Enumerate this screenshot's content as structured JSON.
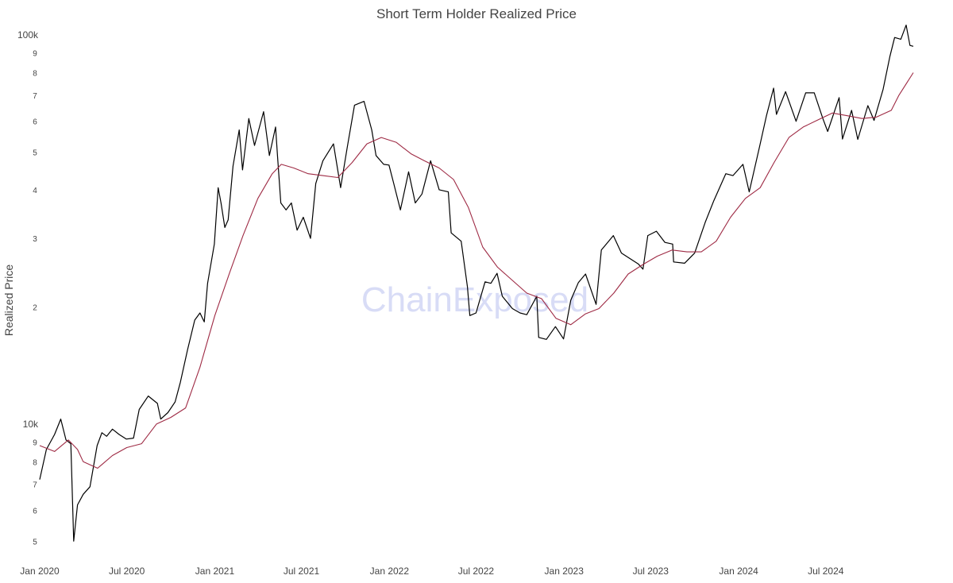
{
  "chart_data": {
    "type": "line",
    "title": "Short Term Holder Realized Price",
    "ylabel": "Realized Price",
    "xlabel": "",
    "y_scale": "log",
    "ylim": [
      4800,
      100000
    ],
    "grid": false,
    "legend": "none",
    "watermark": "ChainExposed",
    "x_ticks": [
      "Jan 2020",
      "Jul 2020",
      "Jan 2021",
      "Jul 2021",
      "Jan 2022",
      "Jul 2022",
      "Jan 2023",
      "Jul 2023",
      "Jan 2024",
      "Jul 2024"
    ],
    "y_major_ticks": [
      {
        "value": 10000,
        "label": "10k"
      },
      {
        "value": 100000,
        "label": "100k"
      }
    ],
    "y_minor_ticks": [
      {
        "value": 5000,
        "label": "5"
      },
      {
        "value": 6000,
        "label": "6"
      },
      {
        "value": 7000,
        "label": "7"
      },
      {
        "value": 8000,
        "label": "8"
      },
      {
        "value": 9000,
        "label": "9"
      },
      {
        "value": 20000,
        "label": "2"
      },
      {
        "value": 30000,
        "label": "3"
      },
      {
        "value": 40000,
        "label": "4"
      },
      {
        "value": 50000,
        "label": "5"
      },
      {
        "value": 60000,
        "label": "6"
      },
      {
        "value": 70000,
        "label": "7"
      },
      {
        "value": 80000,
        "label": "8"
      },
      {
        "value": 90000,
        "label": "9"
      }
    ],
    "series": [
      {
        "color": "#000000",
        "points": [
          [
            "2020-01-01",
            7200
          ],
          [
            "2020-01-15",
            8600
          ],
          [
            "2020-02-01",
            9400
          ],
          [
            "2020-02-14",
            10300
          ],
          [
            "2020-02-25",
            9100
          ],
          [
            "2020-03-06",
            8900
          ],
          [
            "2020-03-12",
            5000
          ],
          [
            "2020-03-20",
            6200
          ],
          [
            "2020-04-01",
            6600
          ],
          [
            "2020-04-15",
            6900
          ],
          [
            "2020-04-30",
            8800
          ],
          [
            "2020-05-10",
            9500
          ],
          [
            "2020-05-20",
            9300
          ],
          [
            "2020-06-01",
            9700
          ],
          [
            "2020-06-15",
            9400
          ],
          [
            "2020-06-30",
            9150
          ],
          [
            "2020-07-15",
            9200
          ],
          [
            "2020-07-27",
            10900
          ],
          [
            "2020-08-15",
            11800
          ],
          [
            "2020-09-03",
            11300
          ],
          [
            "2020-09-10",
            10300
          ],
          [
            "2020-09-25",
            10700
          ],
          [
            "2020-10-10",
            11400
          ],
          [
            "2020-10-21",
            12800
          ],
          [
            "2020-11-05",
            15500
          ],
          [
            "2020-11-20",
            18500
          ],
          [
            "2020-12-01",
            19300
          ],
          [
            "2020-12-10",
            18300
          ],
          [
            "2020-12-17",
            23000
          ],
          [
            "2020-12-31",
            29000
          ],
          [
            "2021-01-08",
            40500
          ],
          [
            "2021-01-14",
            37000
          ],
          [
            "2021-01-22",
            32000
          ],
          [
            "2021-01-29",
            33500
          ],
          [
            "2021-02-08",
            46000
          ],
          [
            "2021-02-21",
            57000
          ],
          [
            "2021-02-28",
            45000
          ],
          [
            "2021-03-13",
            61000
          ],
          [
            "2021-03-25",
            52000
          ],
          [
            "2021-04-13",
            63500
          ],
          [
            "2021-04-25",
            49000
          ],
          [
            "2021-05-08",
            58000
          ],
          [
            "2021-05-12",
            49000
          ],
          [
            "2021-05-19",
            37000
          ],
          [
            "2021-05-30",
            35500
          ],
          [
            "2021-06-10",
            37000
          ],
          [
            "2021-06-22",
            31500
          ],
          [
            "2021-07-05",
            34000
          ],
          [
            "2021-07-20",
            30000
          ],
          [
            "2021-07-31",
            41500
          ],
          [
            "2021-08-15",
            47500
          ],
          [
            "2021-09-06",
            52500
          ],
          [
            "2021-09-21",
            40500
          ],
          [
            "2021-10-05",
            51500
          ],
          [
            "2021-10-20",
            66000
          ],
          [
            "2021-11-09",
            67500
          ],
          [
            "2021-11-25",
            57000
          ],
          [
            "2021-12-04",
            49000
          ],
          [
            "2021-12-20",
            46500
          ],
          [
            "2021-12-31",
            46300
          ],
          [
            "2022-01-10",
            41500
          ],
          [
            "2022-01-24",
            35500
          ],
          [
            "2022-02-10",
            44500
          ],
          [
            "2022-02-24",
            37000
          ],
          [
            "2022-03-10",
            39000
          ],
          [
            "2022-03-28",
            47500
          ],
          [
            "2022-04-15",
            40000
          ],
          [
            "2022-05-04",
            39500
          ],
          [
            "2022-05-10",
            31000
          ],
          [
            "2022-05-31",
            29500
          ],
          [
            "2022-06-13",
            22500
          ],
          [
            "2022-06-18",
            19000
          ],
          [
            "2022-07-01",
            19300
          ],
          [
            "2022-07-20",
            23200
          ],
          [
            "2022-08-01",
            23000
          ],
          [
            "2022-08-14",
            24400
          ],
          [
            "2022-08-25",
            21300
          ],
          [
            "2022-09-15",
            19800
          ],
          [
            "2022-10-01",
            19300
          ],
          [
            "2022-10-15",
            19100
          ],
          [
            "2022-11-05",
            21300
          ],
          [
            "2022-11-09",
            16700
          ],
          [
            "2022-11-25",
            16500
          ],
          [
            "2022-12-14",
            17800
          ],
          [
            "2022-12-31",
            16550
          ],
          [
            "2023-01-15",
            20800
          ],
          [
            "2023-01-31",
            23100
          ],
          [
            "2023-02-15",
            24300
          ],
          [
            "2023-03-09",
            20300
          ],
          [
            "2023-03-20",
            28000
          ],
          [
            "2023-04-14",
            30500
          ],
          [
            "2023-05-01",
            27500
          ],
          [
            "2023-05-15",
            26800
          ],
          [
            "2023-06-05",
            25800
          ],
          [
            "2023-06-15",
            25000
          ],
          [
            "2023-06-25",
            30500
          ],
          [
            "2023-07-13",
            31300
          ],
          [
            "2023-07-31",
            29300
          ],
          [
            "2023-08-16",
            29000
          ],
          [
            "2023-08-18",
            26100
          ],
          [
            "2023-09-10",
            25900
          ],
          [
            "2023-10-01",
            27500
          ],
          [
            "2023-10-23",
            33000
          ],
          [
            "2023-11-10",
            37500
          ],
          [
            "2023-12-05",
            44000
          ],
          [
            "2023-12-20",
            43500
          ],
          [
            "2024-01-10",
            46500
          ],
          [
            "2024-01-23",
            39500
          ],
          [
            "2024-02-14",
            51800
          ],
          [
            "2024-02-28",
            62000
          ],
          [
            "2024-03-14",
            73000
          ],
          [
            "2024-03-20",
            62500
          ],
          [
            "2024-04-08",
            71500
          ],
          [
            "2024-04-30",
            60000
          ],
          [
            "2024-05-20",
            71000
          ],
          [
            "2024-06-07",
            71000
          ],
          [
            "2024-06-25",
            61000
          ],
          [
            "2024-07-05",
            56500
          ],
          [
            "2024-07-29",
            69000
          ],
          [
            "2024-08-05",
            54000
          ],
          [
            "2024-08-24",
            64000
          ],
          [
            "2024-09-06",
            53900
          ],
          [
            "2024-09-27",
            65800
          ],
          [
            "2024-10-10",
            60300
          ],
          [
            "2024-10-29",
            72500
          ],
          [
            "2024-11-12",
            88000
          ],
          [
            "2024-11-22",
            98500
          ],
          [
            "2024-12-05",
            97500
          ],
          [
            "2024-12-16",
            106000
          ],
          [
            "2024-12-24",
            94000
          ],
          [
            "2024-12-31",
            93500
          ]
        ]
      },
      {
        "color": "#9e2a44",
        "points": [
          [
            "2020-01-01",
            8800
          ],
          [
            "2020-02-01",
            8500
          ],
          [
            "2020-03-01",
            9100
          ],
          [
            "2020-03-20",
            8600
          ],
          [
            "2020-04-01",
            8000
          ],
          [
            "2020-05-01",
            7700
          ],
          [
            "2020-06-01",
            8300
          ],
          [
            "2020-07-01",
            8700
          ],
          [
            "2020-08-01",
            8900
          ],
          [
            "2020-09-01",
            10000
          ],
          [
            "2020-10-01",
            10400
          ],
          [
            "2020-11-01",
            11000
          ],
          [
            "2020-12-01",
            14000
          ],
          [
            "2021-01-01",
            19000
          ],
          [
            "2021-02-01",
            24500
          ],
          [
            "2021-03-01",
            30500
          ],
          [
            "2021-04-01",
            38000
          ],
          [
            "2021-05-01",
            44000
          ],
          [
            "2021-05-20",
            46500
          ],
          [
            "2021-06-15",
            45500
          ],
          [
            "2021-07-15",
            44000
          ],
          [
            "2021-08-15",
            43500
          ],
          [
            "2021-09-15",
            43000
          ],
          [
            "2021-10-15",
            47000
          ],
          [
            "2021-11-15",
            52500
          ],
          [
            "2021-12-15",
            54500
          ],
          [
            "2022-01-15",
            53000
          ],
          [
            "2022-02-15",
            49500
          ],
          [
            "2022-03-15",
            47500
          ],
          [
            "2022-04-15",
            45500
          ],
          [
            "2022-05-15",
            42500
          ],
          [
            "2022-06-15",
            36000
          ],
          [
            "2022-07-15",
            28500
          ],
          [
            "2022-08-15",
            25300
          ],
          [
            "2022-09-15",
            23400
          ],
          [
            "2022-10-15",
            21700
          ],
          [
            "2022-11-15",
            21000
          ],
          [
            "2022-12-15",
            18700
          ],
          [
            "2023-01-15",
            18000
          ],
          [
            "2023-02-15",
            19200
          ],
          [
            "2023-03-15",
            19800
          ],
          [
            "2023-04-15",
            21700
          ],
          [
            "2023-05-15",
            24300
          ],
          [
            "2023-06-15",
            25700
          ],
          [
            "2023-07-15",
            27000
          ],
          [
            "2023-08-15",
            28000
          ],
          [
            "2023-09-15",
            27700
          ],
          [
            "2023-10-15",
            27700
          ],
          [
            "2023-11-15",
            29500
          ],
          [
            "2023-12-15",
            34000
          ],
          [
            "2024-01-15",
            38000
          ],
          [
            "2024-02-15",
            40500
          ],
          [
            "2024-03-15",
            47000
          ],
          [
            "2024-04-15",
            54500
          ],
          [
            "2024-05-15",
            58000
          ],
          [
            "2024-06-15",
            60500
          ],
          [
            "2024-07-15",
            63000
          ],
          [
            "2024-08-15",
            62000
          ],
          [
            "2024-09-15",
            61000
          ],
          [
            "2024-10-15",
            61500
          ],
          [
            "2024-11-15",
            64000
          ],
          [
            "2024-12-01",
            70000
          ],
          [
            "2024-12-31",
            80000
          ]
        ]
      }
    ]
  }
}
